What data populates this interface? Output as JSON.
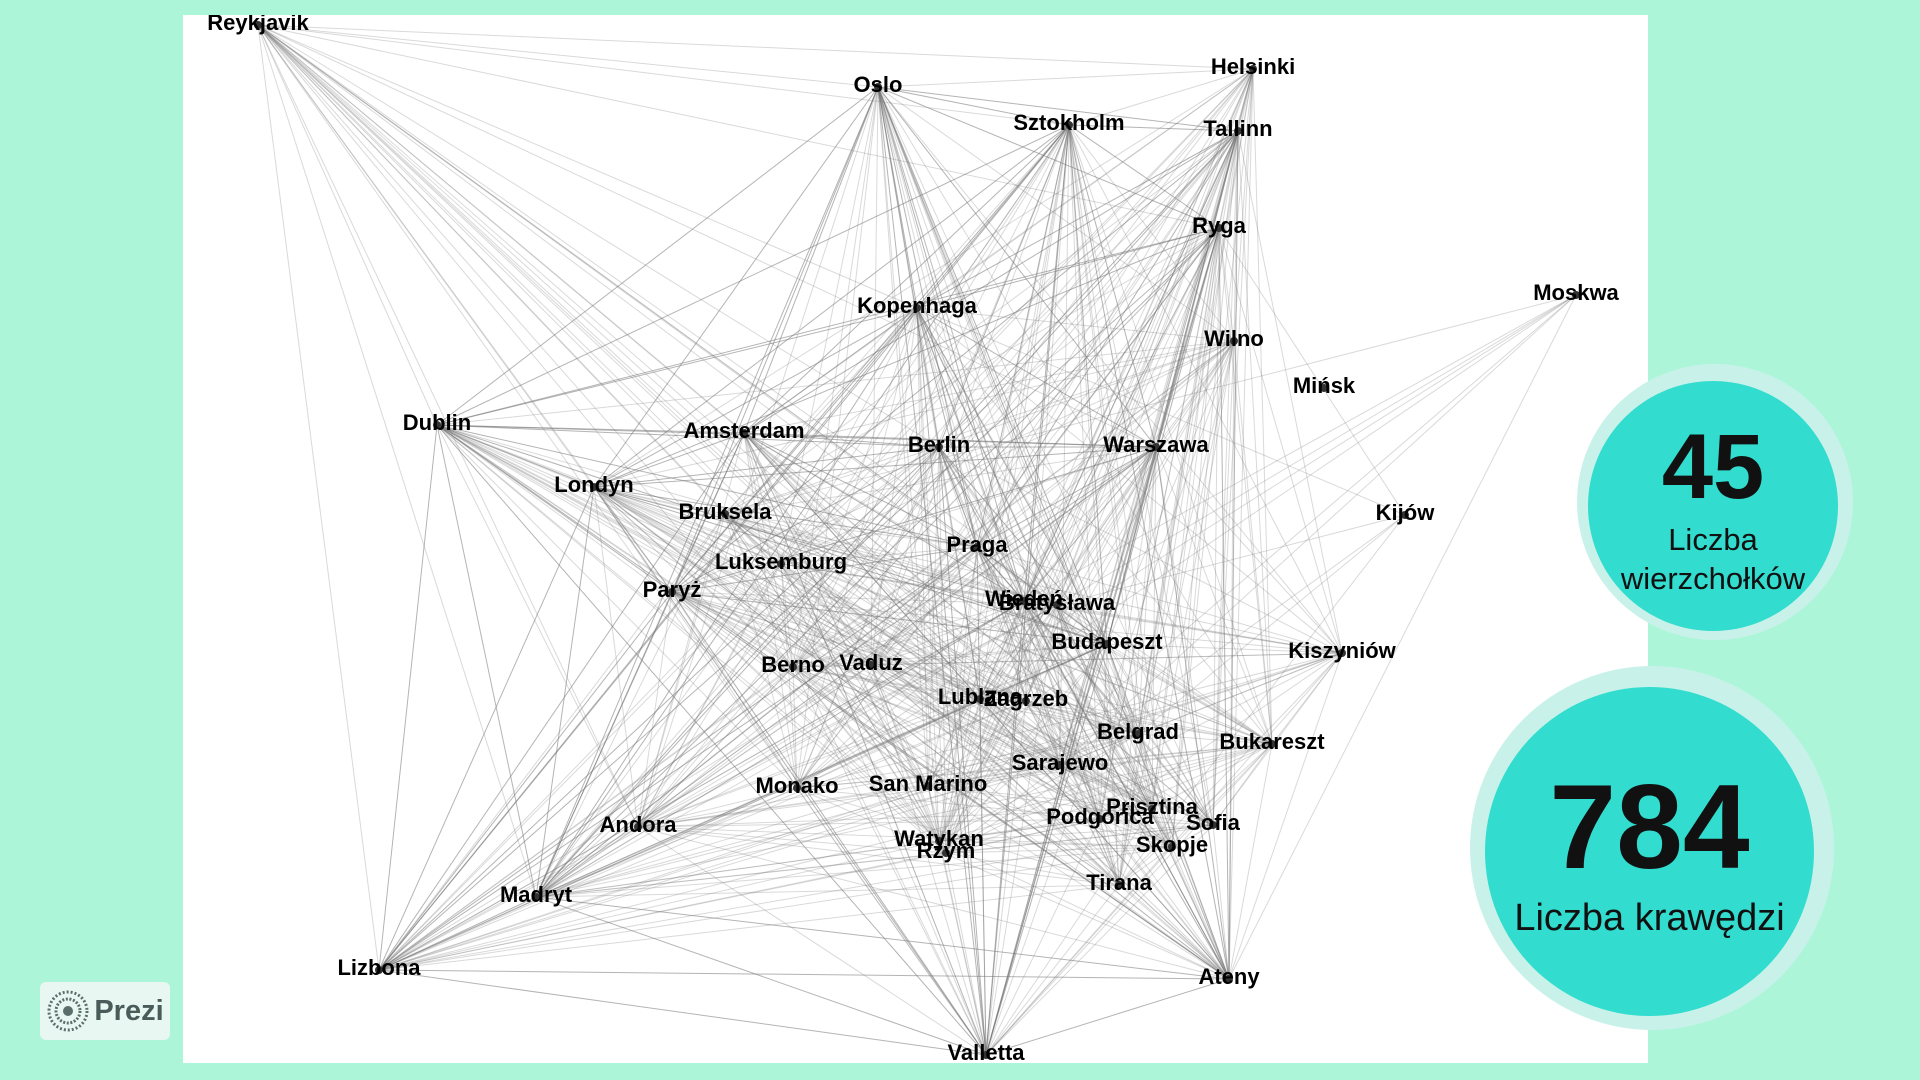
{
  "stats": {
    "vertices": {
      "value": "45",
      "label": "Liczba wierzchołków"
    },
    "edges": {
      "value": "784",
      "label": "Liczba krawędzi"
    }
  },
  "logo": {
    "text": "Prezi",
    "icon": "prezi-logo-icon"
  },
  "colors": {
    "background": "#adf5d9",
    "stat_circle": "#32dccf",
    "edge": "#777777"
  },
  "graph": {
    "nodes": [
      "Reykjavik",
      "Oslo",
      "Helsinki",
      "Sztokholm",
      "Tallinn",
      "Ryga",
      "Moskwa",
      "Kopenhaga",
      "Wilno",
      "Mińsk",
      "Dublin",
      "Amsterdam",
      "Berlin",
      "Warszawa",
      "Londyn",
      "Bruksela",
      "Kijów",
      "Praga",
      "Luksemburg",
      "Paryż",
      "Wiedeń",
      "Bratysława",
      "Budapeszt",
      "Kiszyniów",
      "Berno",
      "Vaduz",
      "Lublana",
      "Zagrzeb",
      "Belgrad",
      "Bukareszt",
      "Sarajewo",
      "Monako",
      "San Marino",
      "Andora",
      "Prisztina",
      "Podgorica",
      "Sofia",
      "Watykan",
      "Skopje",
      "Rzym",
      "Madryt",
      "Tirana",
      "Lizbona",
      "Ateny",
      "Valletta"
    ]
  }
}
